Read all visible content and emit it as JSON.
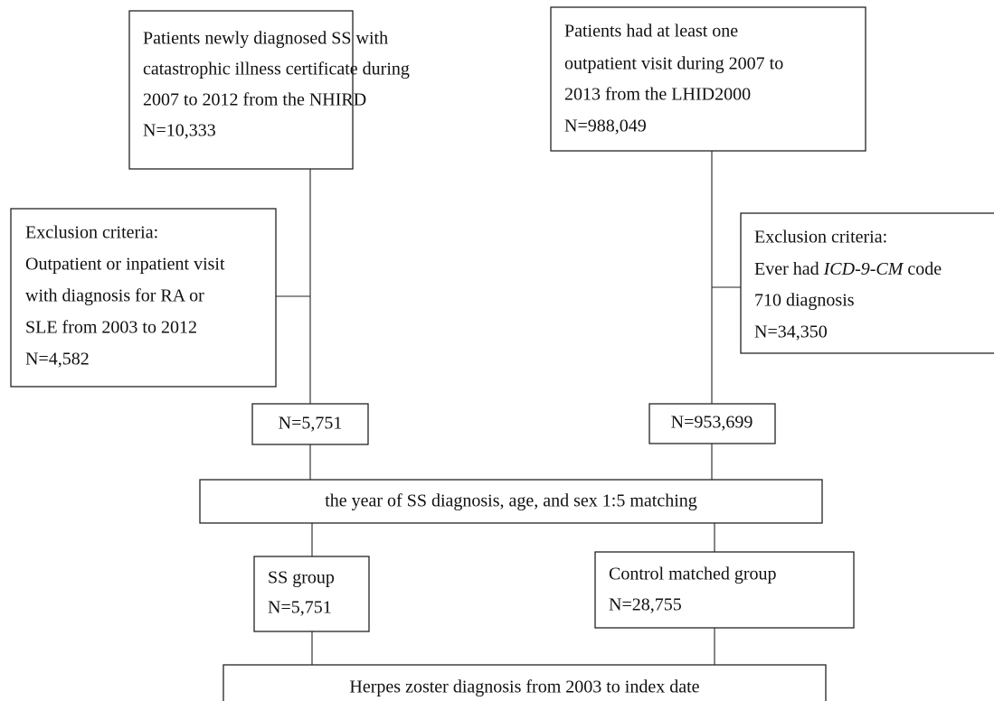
{
  "nodes": [
    {
      "lines": [
        "Patients newly diagnosed SS with",
        "catastrophic illness certificate during",
        "2007 to 2012 from the NHIRD",
        "N=10,333"
      ]
    },
    {
      "lines": [
        "Patients had at least one",
        "outpatient visit during 2007 to",
        "2013 from the LHID2000",
        "N=988,049"
      ]
    },
    {
      "lines": [
        "Exclusion criteria:",
        "Outpatient or inpatient visit",
        "with diagnosis for RA or",
        "SLE from 2003 to 2012",
        "N=4,582"
      ]
    },
    {
      "lines": [
        "Exclusion criteria:",
        [
          "Ever had ",
          "ICD-9-CM",
          " code"
        ],
        "710 diagnosis",
        "N=34,350"
      ]
    },
    {
      "lines": [
        "N=5,751"
      ]
    },
    {
      "lines": [
        "N=953,699"
      ]
    },
    {
      "lines": [
        "the year of SS diagnosis, age, and sex 1:5 matching"
      ]
    },
    {
      "lines": [
        "SS group",
        "N=5,751"
      ]
    },
    {
      "lines": [
        "Control matched group",
        "N=28,755"
      ]
    },
    {
      "lines": [
        "Herpes zoster diagnosis from 2003 to index date"
      ]
    }
  ]
}
